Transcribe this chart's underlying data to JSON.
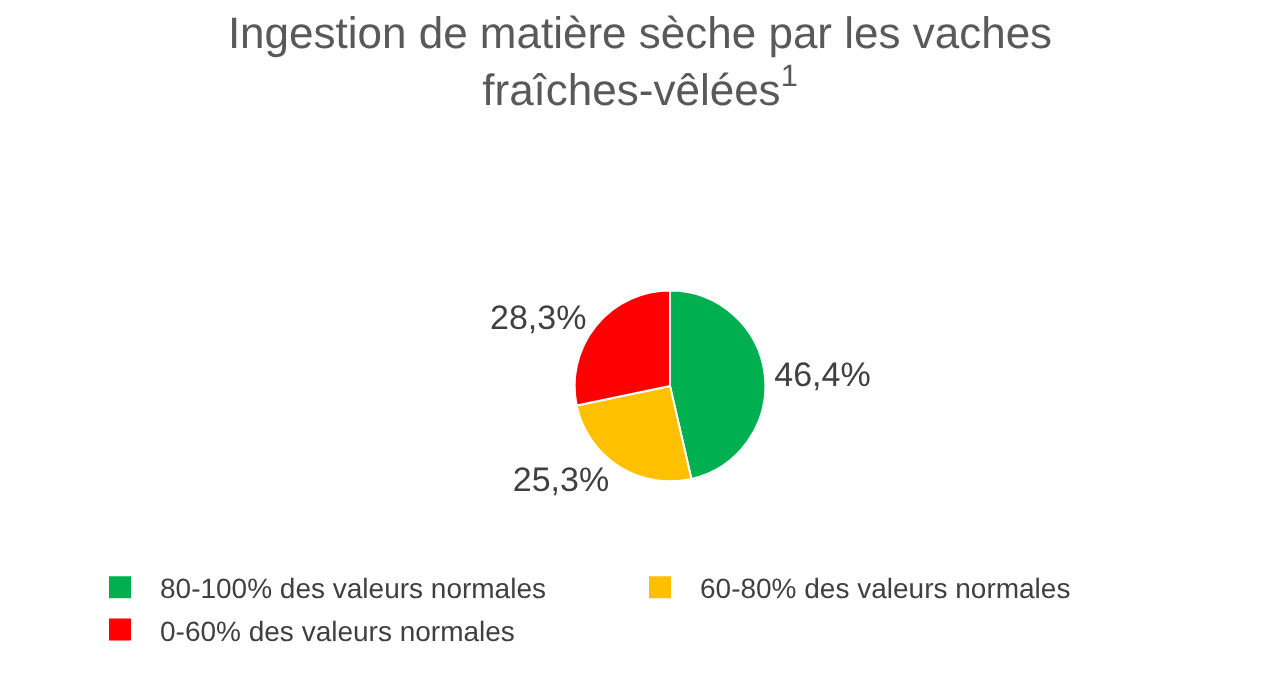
{
  "chart_data": {
    "type": "pie",
    "title": "Ingestion de matière sèche par les vaches fraîches-vêlées$^{1}$",
    "categories": [
      "80-100% des valeurs normales",
      "60-80% des valeurs normales",
      "0-60% des valeurs normales"
    ],
    "values": [
      46.4,
      25.3,
      28.3
    ],
    "colors": [
      "#00b050",
      "#ffc000",
      "#ff0000"
    ],
    "value_labels": [
      "46,4%",
      "25,3%",
      "28,3%"
    ],
    "legend": "bottom"
  }
}
